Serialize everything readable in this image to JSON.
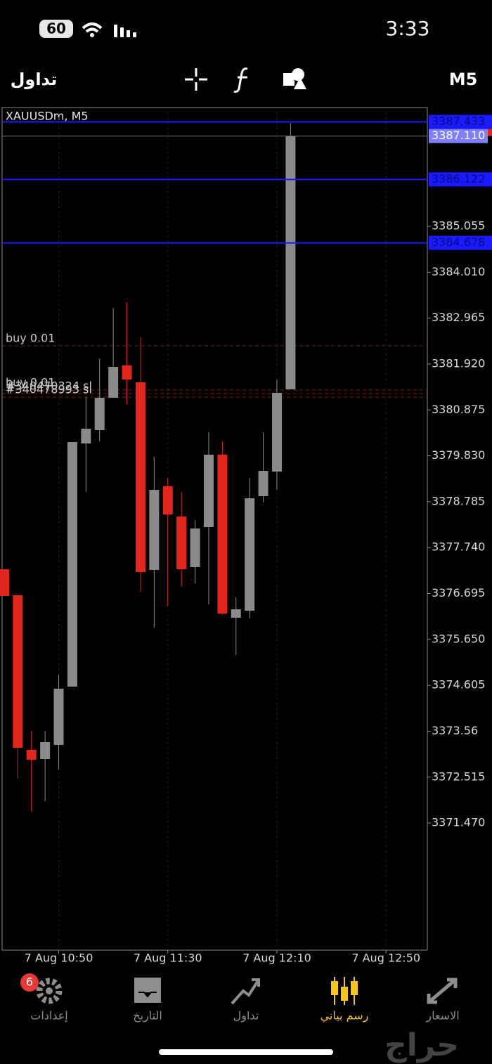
{
  "status_bar": {
    "battery": "60",
    "time": "3:33"
  },
  "toolbar": {
    "title": "تداول",
    "timeframe": "M5"
  },
  "chart_data": {
    "type": "candlestick",
    "title": "XAUUSDm, M5",
    "open": [
      3377.247,
      3376.655,
      3373.135,
      3372.927,
      3373.247,
      3374.575,
      3380.111,
      3380.415,
      3381.151,
      3381.887,
      3381.503,
      3377.231,
      3379.135,
      3378.447,
      3377.295,
      3378.207,
      3379.855,
      3376.143,
      3376.303,
      3378.911,
      3379.471,
      3381.343
    ],
    "high": [
      3377.247,
      3376.655,
      3373.567,
      3373.567,
      3374.847,
      3380.143,
      3381.167,
      3382.047,
      3383.199,
      3383.327,
      3382.527,
      3379.807,
      3379.327,
      3379.007,
      3378.367,
      3380.367,
      3380.159,
      3376.607,
      3379.327,
      3380.367,
      3381.567,
      3387.407
    ],
    "low": [
      3376.639,
      3372.479,
      3371.727,
      3371.967,
      3372.687,
      3374.575,
      3379.007,
      3380.159,
      3381.151,
      3381.007,
      3376.735,
      3375.919,
      3376.415,
      3376.847,
      3376.927,
      3376.447,
      3376.207,
      3375.295,
      3376.127,
      3378.767,
      3379.055,
      3381.343
    ],
    "close": [
      3376.639,
      3373.183,
      3372.911,
      3373.311,
      3374.527,
      3380.143,
      3380.447,
      3381.151,
      3381.855,
      3381.567,
      3377.183,
      3379.055,
      3378.495,
      3377.247,
      3378.175,
      3379.855,
      3376.239,
      3376.335,
      3378.863,
      3379.487,
      3381.263,
      3387.11
    ],
    "up_color": "#8a8a8a",
    "down_color": "#e3261b",
    "xlim": [
      -0.15,
      31.03
    ],
    "xticks": [
      {
        "value": 4,
        "label": "7 Aug 10:50"
      },
      {
        "value": 12,
        "label": "7 Aug 11:30"
      },
      {
        "value": 20,
        "label": "7 Aug 12:10"
      },
      {
        "value": 28,
        "label": "7 Aug 12:50"
      }
    ],
    "ylim": [
      3368.575,
      3387.759
    ],
    "yticks": [
      3385.055,
      {
        "value": 3384.01,
        "label": "3384.010"
      },
      3382.965,
      {
        "value": 3381.92,
        "label": "3381.920"
      },
      3380.875,
      {
        "value": 3379.83,
        "label": "3379.830"
      },
      3378.785,
      {
        "value": 3377.74,
        "label": "3377.740"
      },
      3376.695,
      {
        "value": 3375.65,
        "label": "3375.650"
      },
      3374.605,
      3373.56,
      3372.515,
      {
        "value": 3371.47,
        "label": "3371.470"
      }
    ],
    "price_lines": [
      {
        "value": 3387.433,
        "color": "#1a1aff"
      },
      {
        "value": 3386.122,
        "color": "#1a1aff"
      },
      {
        "value": 3384.678,
        "color": "#1a1aff"
      }
    ],
    "current_price": {
      "value": 3387.11,
      "label": "3387.110",
      "color": "#8080ff"
    },
    "order_lines": [
      {
        "label": "buy 0.01",
        "value": 3382.335
      },
      {
        "label": "buy 0.01",
        "value": 3381.327
      },
      {
        "label": "#340470324 sl",
        "value": 3381.247
      },
      {
        "label": "#340478993 sl",
        "value": 3381.167
      }
    ]
  },
  "tab_bar": {
    "items": [
      {
        "label": "إعدادات",
        "badge": "6"
      },
      {
        "label": "التاريخ"
      },
      {
        "label": "تداول"
      },
      {
        "label": "رسم بياني"
      },
      {
        "label": "الاسعار"
      }
    ],
    "active": 3
  },
  "watermark": "حراج"
}
